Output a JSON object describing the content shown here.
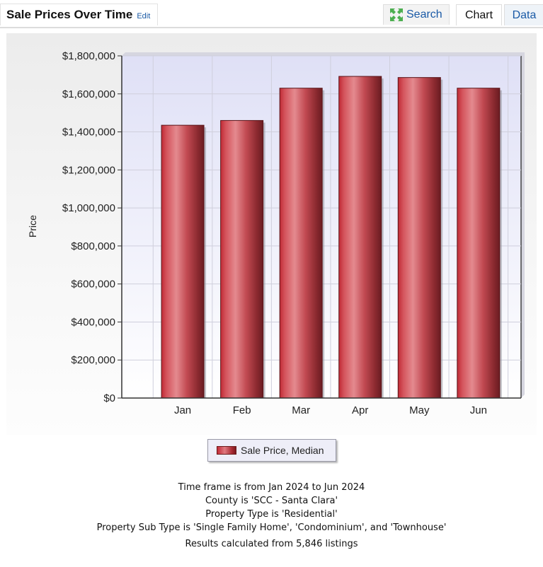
{
  "header": {
    "title": "Sale Prices Over Time",
    "edit_label": "Edit",
    "tabs": {
      "search": "Search",
      "chart": "Chart",
      "data": "Data"
    }
  },
  "icons": {
    "search_tab": "expand-arrows-icon"
  },
  "chart_data": {
    "type": "bar",
    "categories": [
      "Jan",
      "Feb",
      "Mar",
      "Apr",
      "May",
      "Jun"
    ],
    "series": [
      {
        "name": "Sale Price, Median",
        "values": [
          1435000,
          1460000,
          1630000,
          1692000,
          1686000,
          1630000
        ]
      }
    ],
    "title": "",
    "xlabel": "",
    "ylabel": "Price",
    "ylim": [
      0,
      1800000
    ],
    "yticks": [
      0,
      200000,
      400000,
      600000,
      800000,
      1000000,
      1200000,
      1400000,
      1600000,
      1800000
    ],
    "ytick_labels": [
      "$0",
      "$200,000",
      "$400,000",
      "$600,000",
      "$800,000",
      "$1,000,000",
      "$1,200,000",
      "$1,400,000",
      "$1,600,000",
      "$1,800,000"
    ],
    "grid": true,
    "legend_position": "bottom-center",
    "bar_color": "#c8323c"
  },
  "notes": {
    "lines": [
      "Time frame is from Jan 2024 to Jun 2024",
      "County is 'SCC - Santa Clara'",
      "Property Type is 'Residential'",
      "Property Sub Type is 'Single Family Home', 'Condominium', and 'Townhouse'"
    ],
    "results": "Results calculated from 5,846 listings"
  }
}
